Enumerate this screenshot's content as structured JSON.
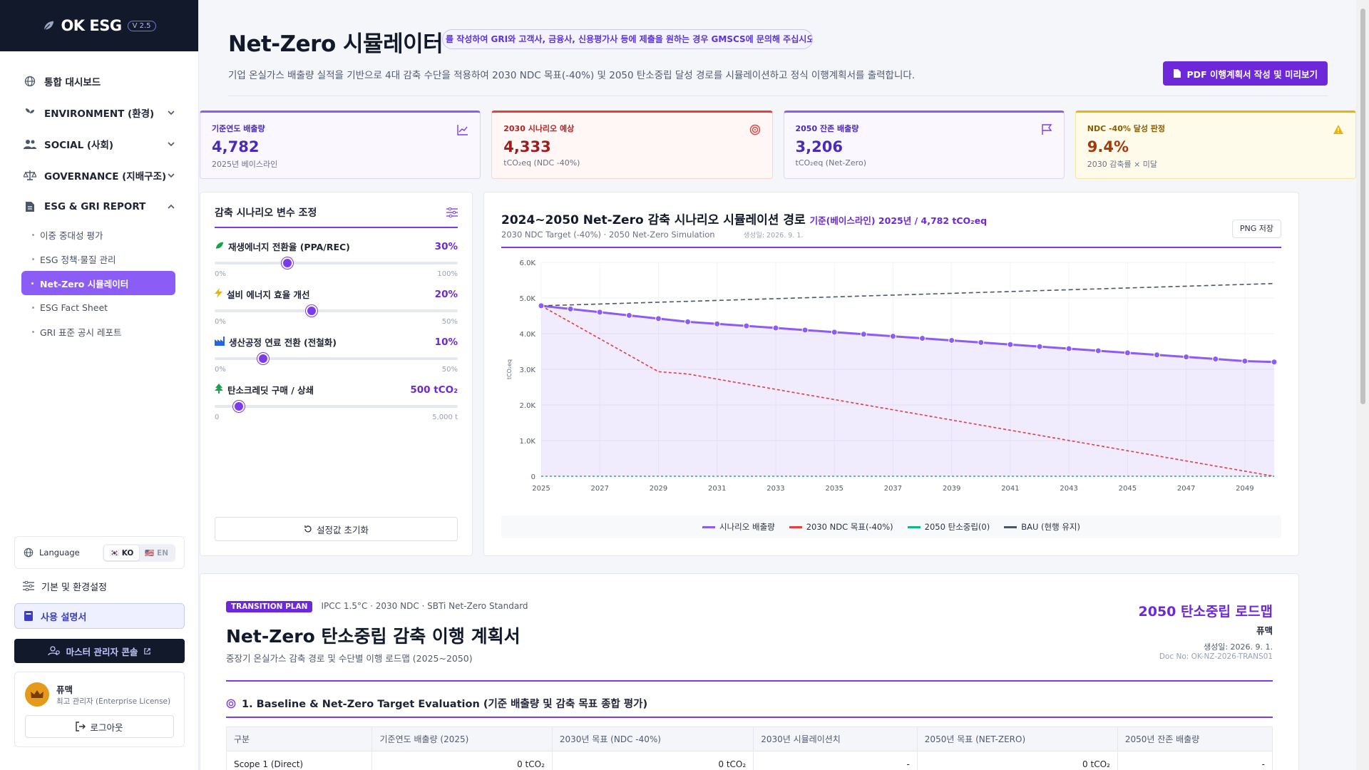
{
  "app": {
    "name": "OK ESG",
    "version": "V 2.5"
  },
  "sidebar": {
    "items": [
      {
        "label": "통합 대시보드",
        "icon": "globe-icon",
        "expandable": false
      },
      {
        "label": "ENVIRONMENT (환경)",
        "icon": "leaf-icon",
        "expandable": true
      },
      {
        "label": "SOCIAL (사회)",
        "icon": "users-icon",
        "expandable": true
      },
      {
        "label": "GOVERNANCE (지배구조)",
        "icon": "scale-icon",
        "expandable": true
      },
      {
        "label": "ESG & GRI REPORT",
        "icon": "document-icon",
        "expandable": true,
        "expanded": true
      }
    ],
    "sub_items": [
      "이중 중대성 평가",
      "ESG 정책·물질 관리",
      "Net-Zero 시뮬레이터",
      "ESG Fact Sheet",
      "GRI 표준 공시 레포트"
    ],
    "active_sub": "Net-Zero 시뮬레이터",
    "language_label": "Language",
    "lang_ko": "🇰🇷 KO",
    "lang_en": "🇺🇸 EN",
    "settings_label": "기본 및 환경설정",
    "manual_label": "사용 설명서",
    "master_label": "마스터 관리자 콘솔",
    "user_name": "퓨맥",
    "user_role": "최고 관리자 (Enterprise License)",
    "logout_label": "로그아웃"
  },
  "header": {
    "title": "Net-Zero 시뮬레이터",
    "badge": "를 작성하여 GRI와 고객사, 금융사, 신용평가사 등에 제출을 원하는 경우 GMSCS에 문의해 주십시오",
    "desc": "기업 온실가스 배출량 실적을 기반으로 4대 감축 수단을 적용하여 2030 NDC 목표(-40%) 및 2050 탄소중립 달성 경로를 시뮬레이션하고 정식 이행계획서를 출력합니다.",
    "pdf_button": "PDF 이행계획서 작성 및 미리보기"
  },
  "kpis": [
    {
      "label": "기준연도 배출량",
      "value": "4,782",
      "sub": "2025년 베이스라인",
      "icon": "line-chart-icon"
    },
    {
      "label": "2030 시나리오 예상",
      "value": "4,333",
      "sub": "tCO₂eq (NDC -40%)",
      "icon": "target-icon"
    },
    {
      "label": "2050 잔존 배출량",
      "value": "3,206",
      "sub": "tCO₂eq (Net-Zero)",
      "icon": "flag-icon"
    },
    {
      "label": "NDC -40% 달성 판정",
      "value": "9.4%",
      "sub": "2030 감축률 × 미달",
      "icon": "warning-icon"
    }
  ],
  "scenario": {
    "title": "감축 시나리오 변수 조정",
    "sliders": [
      {
        "label": "재생에너지 전환율 (PPA/REC)",
        "value": "30%",
        "min": "0%",
        "max": "100%",
        "level": 0.3,
        "icon": "leaf-icon"
      },
      {
        "label": "설비 에너지 효율 개선",
        "value": "20%",
        "min": "0%",
        "max": "50%",
        "level": 0.4,
        "icon": "bolt-icon"
      },
      {
        "label": "생산공정 연료 전환 (전철화)",
        "value": "10%",
        "min": "0%",
        "max": "50%",
        "level": 0.2,
        "icon": "factory-icon"
      },
      {
        "label": "탄소크레딧 구매 / 상쇄",
        "value": "500 tCO₂",
        "min": "0",
        "max": "5,000 t",
        "level": 0.1,
        "icon": "tree-icon"
      }
    ],
    "reset_label": "설정값 초기화"
  },
  "chart": {
    "title": "2024~2050 Net-Zero 감축 시나리오 시뮬레이션 경로",
    "baseline_note": "기준(베이스라인) 2025년 / 4,782 tCO₂eq",
    "subtitle": "2030 NDC Target (-40%) · 2050 Net-Zero Simulation",
    "generated": "생성일: 2026. 9. 1.",
    "png_button": "PNG 저장"
  },
  "chart_data": {
    "type": "line",
    "ylabel": "tCO₂eq",
    "ylim": [
      0,
      6000
    ],
    "yticks": [
      "0",
      "1.0K",
      "2.0K",
      "3.0K",
      "4.0K",
      "5.0K",
      "6.0K"
    ],
    "xticks": [
      "2025",
      "2027",
      "2029",
      "2031",
      "2033",
      "2035",
      "2037",
      "2039",
      "2041",
      "2043",
      "2045",
      "2047",
      "2049"
    ],
    "x": [
      2025,
      2026,
      2027,
      2028,
      2029,
      2030,
      2031,
      2032,
      2033,
      2034,
      2035,
      2036,
      2037,
      2038,
      2039,
      2040,
      2041,
      2042,
      2043,
      2044,
      2045,
      2046,
      2047,
      2048,
      2049,
      2050
    ],
    "series": [
      {
        "name": "시나리오 배출량",
        "color": "#8b5cf6",
        "values": [
          4782,
          4692,
          4602,
          4512,
          4422,
          4333,
          4275,
          4217,
          4159,
          4101,
          4043,
          3985,
          3927,
          3869,
          3811,
          3753,
          3695,
          3637,
          3579,
          3521,
          3463,
          3405,
          3347,
          3289,
          3231,
          3206
        ]
      },
      {
        "name": "2030 NDC 목표(-40%)",
        "color": "#e53e3e",
        "values": [
          4782,
          4320,
          3858,
          3396,
          2934,
          2869,
          2726,
          2582,
          2439,
          2295,
          2152,
          2008,
          1865,
          1722,
          1578,
          1435,
          1291,
          1148,
          1004,
          861,
          717,
          574,
          430,
          287,
          143,
          0
        ]
      },
      {
        "name": "2050 탄소중립(0)",
        "color": "#10b981",
        "values": [
          0,
          0,
          0,
          0,
          0,
          0,
          0,
          0,
          0,
          0,
          0,
          0,
          0,
          0,
          0,
          0,
          0,
          0,
          0,
          0,
          0,
          0,
          0,
          0,
          0,
          0
        ]
      },
      {
        "name": "BAU (현행 유지)",
        "color": "#4b5668",
        "values": [
          4782,
          4807,
          4832,
          4857,
          4882,
          4907,
          4932,
          4957,
          4982,
          5007,
          5032,
          5057,
          5082,
          5107,
          5132,
          5157,
          5182,
          5207,
          5232,
          5257,
          5282,
          5307,
          5332,
          5357,
          5382,
          5407
        ]
      }
    ],
    "legend": "bottom"
  },
  "report": {
    "badge": "TRANSITION PLAN",
    "standards": "IPCC 1.5°C · 2030 NDC · SBTi Net-Zero Standard",
    "title": "Net-Zero 탄소중립 감축 이행 계획서",
    "subtitle": "중장기 온실가스 감축 경로 및 수단별 이행 로드맵 (2025~2050)",
    "roadmap": "2050 탄소중립 로드맵",
    "company": "퓨맥",
    "created": "생성일: 2026. 9. 1.",
    "doc_no": "Doc No: OK-NZ-2026-TRANS01",
    "section1": "1. Baseline & Net-Zero Target Evaluation (기준 배출량 및 감축 목표 종합 평가)",
    "table_headers": [
      "구분",
      "기준연도 배출량 (2025)",
      "2030년 목표 (NDC -40%)",
      "2030년 시뮬레이션치",
      "2050년 목표 (NET-ZERO)",
      "2050년 잔존 배출량"
    ],
    "rows": [
      [
        "Scope 1 (Direct)",
        "0 tCO₂",
        "0 tCO₂",
        "-",
        "0 tCO₂",
        "-"
      ]
    ]
  }
}
